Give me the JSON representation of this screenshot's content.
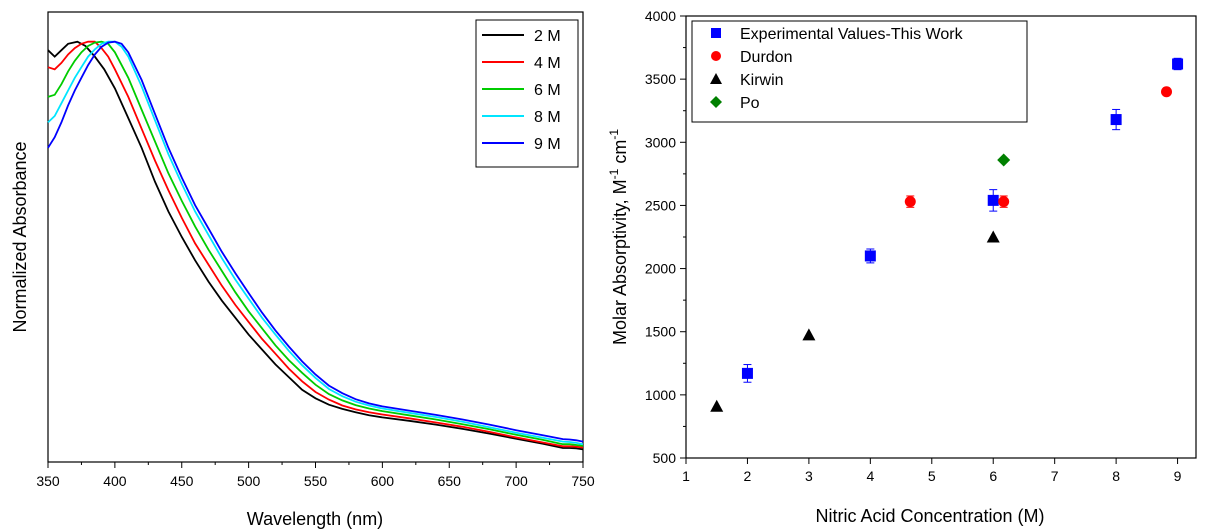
{
  "chart_data": [
    {
      "type": "line",
      "title": "",
      "xlabel": "Wavelength (nm)",
      "ylabel": "Normalized Absorbance",
      "xlim": [
        350,
        750
      ],
      "ylim": [
        0,
        1.06
      ],
      "yticks_shown": false,
      "xticks": [
        350,
        400,
        450,
        500,
        550,
        600,
        650,
        700,
        750
      ],
      "legend_position": "top-right",
      "grid": false,
      "series": [
        {
          "name": "2 M",
          "color": "#000000",
          "x": [
            350,
            355,
            360,
            365,
            372,
            378,
            385,
            392,
            400,
            410,
            420,
            430,
            440,
            450,
            460,
            470,
            480,
            490,
            500,
            510,
            520,
            530,
            540,
            550,
            560,
            570,
            580,
            590,
            600,
            620,
            640,
            660,
            680,
            700,
            720,
            735,
            740,
            745,
            750
          ],
          "y": [
            0.97,
            0.955,
            0.97,
            0.985,
            0.99,
            0.98,
            0.955,
            0.925,
            0.88,
            0.81,
            0.74,
            0.66,
            0.59,
            0.53,
            0.475,
            0.425,
            0.38,
            0.34,
            0.3,
            0.265,
            0.23,
            0.2,
            0.17,
            0.15,
            0.135,
            0.125,
            0.117,
            0.11,
            0.105,
            0.097,
            0.088,
            0.078,
            0.067,
            0.055,
            0.043,
            0.033,
            0.033,
            0.032,
            0.03
          ]
        },
        {
          "name": "4 M",
          "color": "#ff0000",
          "x": [
            350,
            355,
            360,
            365,
            370,
            375,
            380,
            385,
            390,
            395,
            400,
            410,
            420,
            430,
            440,
            450,
            460,
            470,
            480,
            490,
            500,
            510,
            520,
            530,
            540,
            550,
            560,
            570,
            580,
            590,
            600,
            620,
            640,
            660,
            680,
            700,
            720,
            735,
            740,
            745,
            750
          ],
          "y": [
            0.93,
            0.925,
            0.94,
            0.96,
            0.975,
            0.985,
            0.99,
            0.99,
            0.975,
            0.955,
            0.925,
            0.86,
            0.785,
            0.71,
            0.64,
            0.575,
            0.515,
            0.465,
            0.415,
            0.37,
            0.33,
            0.29,
            0.255,
            0.22,
            0.19,
            0.165,
            0.147,
            0.133,
            0.124,
            0.117,
            0.112,
            0.103,
            0.093,
            0.083,
            0.071,
            0.058,
            0.046,
            0.037,
            0.037,
            0.036,
            0.034
          ]
        },
        {
          "name": "6 M",
          "color": "#00cc00",
          "x": [
            350,
            355,
            360,
            365,
            370,
            375,
            380,
            385,
            390,
            395,
            400,
            410,
            420,
            430,
            440,
            450,
            460,
            470,
            480,
            490,
            500,
            510,
            520,
            530,
            540,
            550,
            560,
            570,
            580,
            590,
            600,
            620,
            640,
            660,
            680,
            700,
            720,
            735,
            740,
            745,
            750
          ],
          "y": [
            0.86,
            0.865,
            0.89,
            0.92,
            0.945,
            0.965,
            0.98,
            0.988,
            0.99,
            0.985,
            0.965,
            0.905,
            0.83,
            0.755,
            0.68,
            0.615,
            0.555,
            0.5,
            0.45,
            0.4,
            0.355,
            0.315,
            0.275,
            0.24,
            0.21,
            0.182,
            0.16,
            0.145,
            0.134,
            0.126,
            0.12,
            0.11,
            0.1,
            0.089,
            0.077,
            0.064,
            0.052,
            0.042,
            0.042,
            0.04,
            0.038
          ]
        },
        {
          "name": "8 M",
          "color": "#00e5ff",
          "x": [
            350,
            355,
            360,
            365,
            370,
            375,
            380,
            385,
            390,
            395,
            400,
            405,
            410,
            420,
            430,
            440,
            450,
            460,
            470,
            480,
            490,
            500,
            510,
            520,
            530,
            540,
            550,
            560,
            570,
            580,
            590,
            600,
            620,
            640,
            660,
            680,
            700,
            720,
            735,
            740,
            745,
            750
          ],
          "y": [
            0.8,
            0.815,
            0.845,
            0.875,
            0.905,
            0.93,
            0.955,
            0.972,
            0.985,
            0.99,
            0.99,
            0.978,
            0.955,
            0.885,
            0.805,
            0.725,
            0.655,
            0.59,
            0.535,
            0.48,
            0.43,
            0.385,
            0.34,
            0.3,
            0.262,
            0.228,
            0.198,
            0.172,
            0.155,
            0.142,
            0.133,
            0.126,
            0.116,
            0.106,
            0.095,
            0.082,
            0.069,
            0.057,
            0.048,
            0.047,
            0.045,
            0.042
          ]
        },
        {
          "name": "9 M",
          "color": "#0000ff",
          "x": [
            350,
            355,
            360,
            365,
            370,
            375,
            380,
            385,
            390,
            395,
            400,
            405,
            410,
            420,
            430,
            440,
            450,
            460,
            470,
            480,
            490,
            500,
            510,
            520,
            530,
            540,
            550,
            560,
            570,
            580,
            590,
            600,
            620,
            640,
            660,
            680,
            700,
            720,
            735,
            740,
            745,
            750
          ],
          "y": [
            0.74,
            0.765,
            0.8,
            0.84,
            0.875,
            0.905,
            0.935,
            0.96,
            0.978,
            0.988,
            0.99,
            0.985,
            0.965,
            0.9,
            0.82,
            0.74,
            0.67,
            0.605,
            0.55,
            0.495,
            0.445,
            0.398,
            0.352,
            0.31,
            0.272,
            0.237,
            0.206,
            0.18,
            0.162,
            0.148,
            0.138,
            0.131,
            0.121,
            0.111,
            0.1,
            0.088,
            0.075,
            0.063,
            0.054,
            0.053,
            0.051,
            0.048
          ]
        }
      ]
    },
    {
      "type": "scatter",
      "title": "",
      "xlabel": "Nitric Acid Concentration (M)",
      "ylabel_main": "Molar Absorptivity, M",
      "ylabel_sup1": "-1",
      "ylabel_mid": " cm",
      "ylabel_sup2": "-1",
      "xlim": [
        1,
        9.3
      ],
      "ylim": [
        500,
        4000
      ],
      "xticks": [
        1,
        2,
        3,
        4,
        5,
        6,
        7,
        8,
        9
      ],
      "yticks": [
        500,
        1000,
        1500,
        2000,
        2500,
        3000,
        3500,
        4000
      ],
      "legend_position": "top-left",
      "grid": false,
      "series": [
        {
          "name": "Experimental Values-This Work",
          "marker": "square",
          "color": "#0000ff",
          "x": [
            2,
            4,
            6,
            8,
            9
          ],
          "y": [
            1170,
            2100,
            2540,
            3180,
            3620
          ],
          "yerr": [
            70,
            55,
            85,
            80,
            45
          ]
        },
        {
          "name": "Durdon",
          "marker": "circle",
          "color": "#ff0000",
          "x": [
            4.65,
            6.17,
            8.82
          ],
          "y": [
            2530,
            2530,
            3400
          ],
          "yerr": [
            45,
            45,
            0
          ]
        },
        {
          "name": "Kirwin",
          "marker": "triangle",
          "color": "#000000",
          "x": [
            1.5,
            3,
            6
          ],
          "y": [
            910,
            1475,
            2250
          ]
        },
        {
          "name": "Po",
          "marker": "diamond",
          "color": "#008000",
          "x": [
            6.17
          ],
          "y": [
            2860
          ]
        }
      ]
    }
  ]
}
